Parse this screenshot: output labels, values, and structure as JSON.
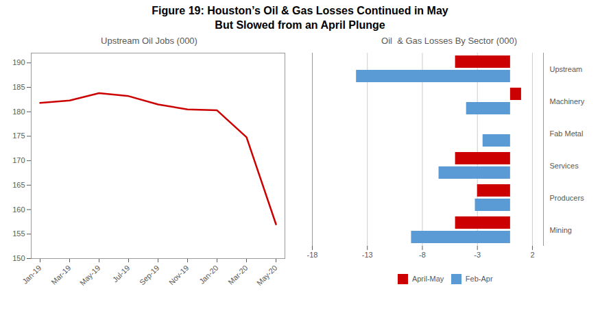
{
  "title": "Figure 19: Houston’s Oil & Gas Losses Continued in May\nBut Slowed from an April Plunge",
  "chart_data": [
    {
      "type": "line",
      "title": "Upstream Oil Jobs (000)",
      "categories": [
        "Jan-19",
        "Mar-19",
        "May-19",
        "Jul-19",
        "Sep-19",
        "Nov-19",
        "Jan-20",
        "Mar-20",
        "May-20"
      ],
      "values": [
        181.8,
        182.3,
        183.8,
        183.2,
        181.5,
        180.5,
        180.3,
        174.8,
        157.0
      ],
      "color": "#CC0000",
      "ylim": [
        150,
        192
      ],
      "yticks": [
        150,
        155,
        160,
        165,
        170,
        175,
        180,
        185,
        190
      ],
      "grid": false
    },
    {
      "type": "bar",
      "orientation": "horizontal",
      "title": "Oil  & Gas Losses By Sector (000)",
      "categories": [
        "Upstream",
        "Machinery",
        "Fab Metal",
        "Services",
        "Producers",
        "Mining"
      ],
      "series": [
        {
          "name": "April-May",
          "color": "#CC0000",
          "values": [
            -5.0,
            1.0,
            0.0,
            -5.0,
            -3.0,
            -5.0
          ]
        },
        {
          "name": "Feb-Apr",
          "color": "#5B9BD5",
          "values": [
            -14.0,
            -4.0,
            -2.5,
            -6.5,
            -3.2,
            -9.0
          ]
        }
      ],
      "xlim": [
        -18,
        3
      ],
      "xticks": [
        -18,
        -13,
        -8,
        -3,
        2
      ],
      "grid": true,
      "legend": "bottom"
    }
  ]
}
